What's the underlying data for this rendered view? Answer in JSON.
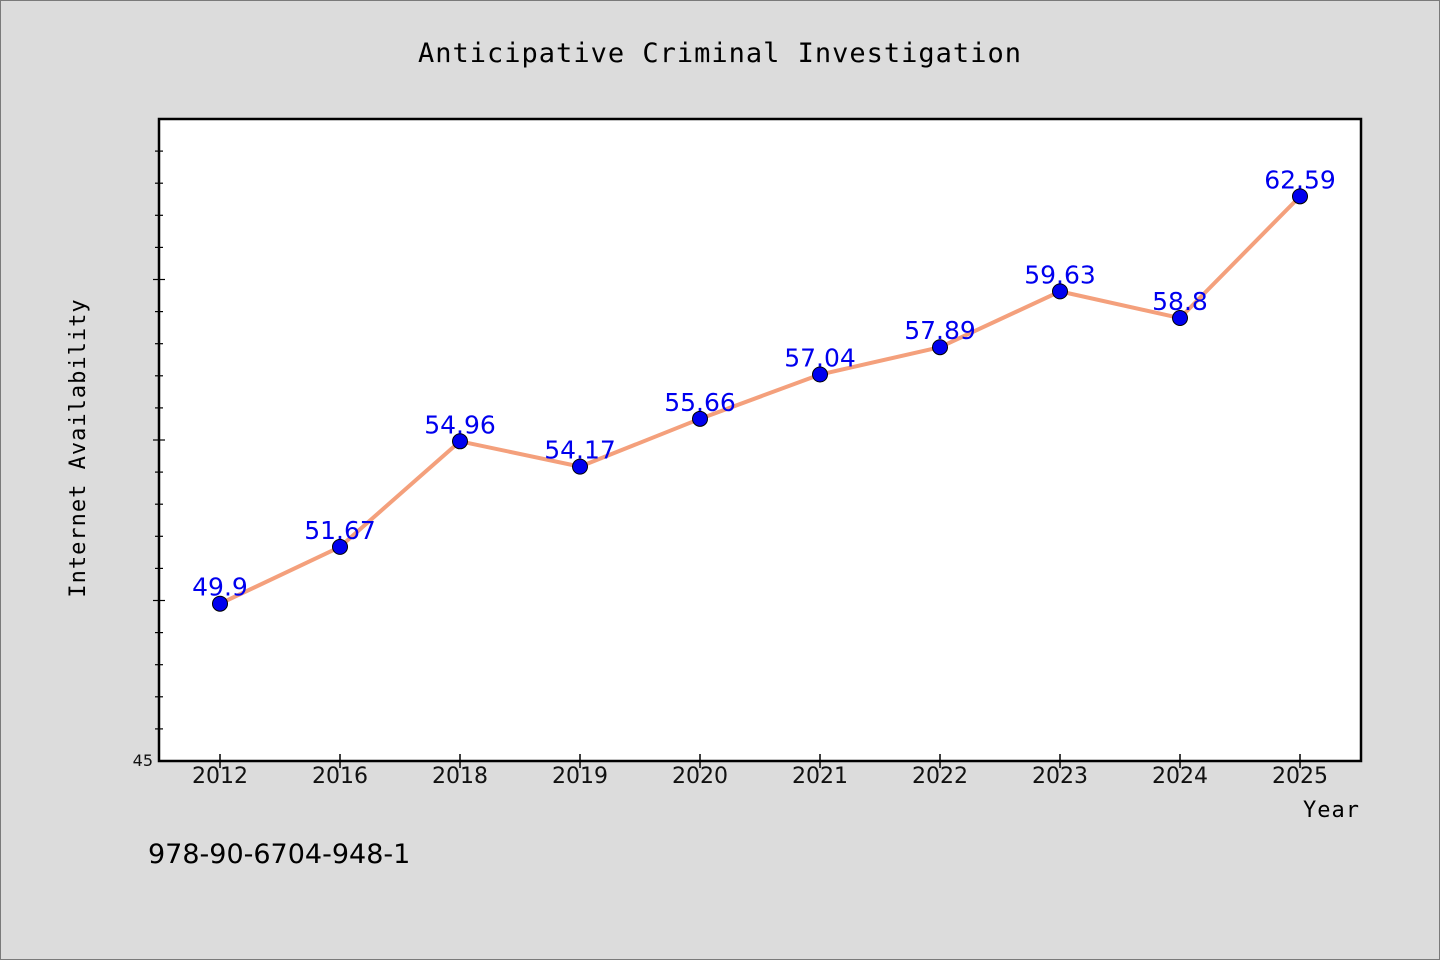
{
  "chart_data": {
    "type": "line",
    "title": "Anticipative Criminal Investigation",
    "xlabel": "Year",
    "ylabel": "Internet Availability",
    "categories": [
      "2012",
      "2016",
      "2018",
      "2019",
      "2020",
      "2021",
      "2022",
      "2023",
      "2024",
      "2025"
    ],
    "series": [
      {
        "values": [
          49.9,
          51.67,
          54.96,
          54.17,
          55.66,
          57.04,
          57.89,
          59.63,
          58.8,
          62.59
        ]
      }
    ],
    "data_labels": [
      "49.9",
      "51.67",
      "54.96",
      "54.17",
      "55.66",
      "57.04",
      "57.89",
      "59.63",
      "58.8",
      "62.59"
    ],
    "ylim": [
      45,
      65
    ],
    "y_tick_labels": [
      "45"
    ],
    "grid": false,
    "line_color": "#f4a07c",
    "marker_color": "#0000ee",
    "label_color": "#0000ee"
  },
  "footer_text": "978-90-6704-948-1"
}
